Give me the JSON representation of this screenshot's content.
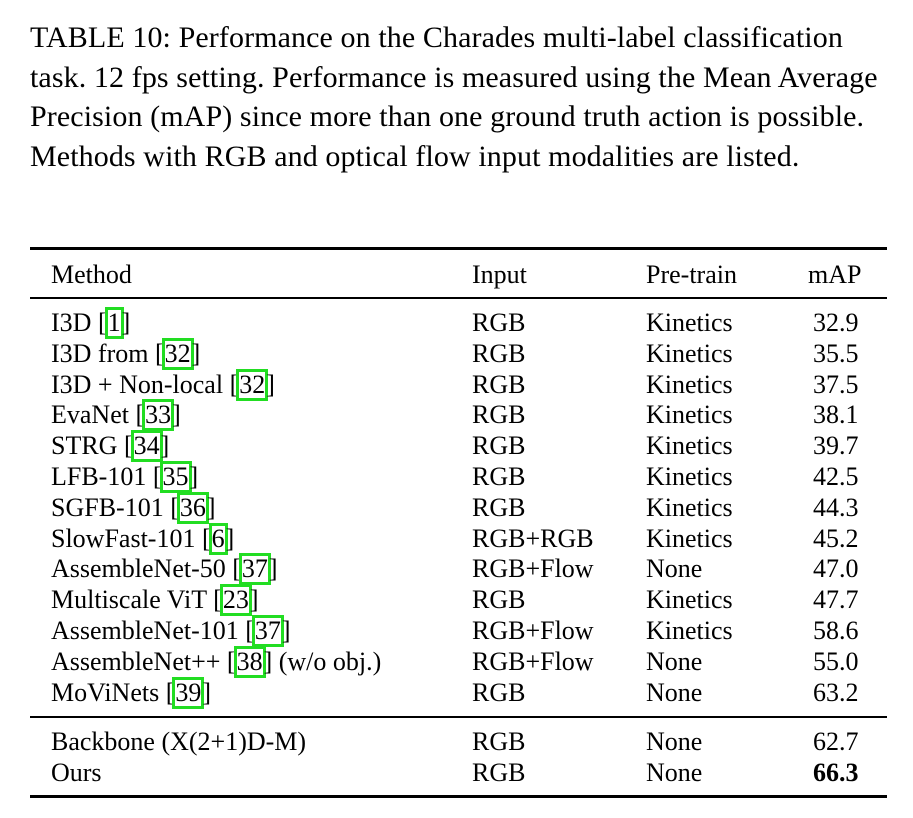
{
  "caption": "TABLE 10: Performance on the Charades multi-label classification task. 12 fps setting. Performance is measured using the Mean Average Precision (mAP) since more than one ground truth action is possible. Methods with RGB and optical flow input modalities are listed.",
  "headers": {
    "method": "Method",
    "input": "Input",
    "pretrain": "Pre-train",
    "map": "mAP"
  },
  "rows": [
    {
      "name": "I3D",
      "cite": "1",
      "suffix": "",
      "input": "RGB",
      "pretrain": "Kinetics",
      "map": "32.9"
    },
    {
      "name": "I3D from",
      "cite": "32",
      "suffix": "",
      "input": "RGB",
      "pretrain": "Kinetics",
      "map": "35.5"
    },
    {
      "name": "I3D + Non-local",
      "cite": "32",
      "suffix": "",
      "input": "RGB",
      "pretrain": "Kinetics",
      "map": "37.5"
    },
    {
      "name": "EvaNet",
      "cite": "33",
      "suffix": "",
      "input": "RGB",
      "pretrain": "Kinetics",
      "map": "38.1"
    },
    {
      "name": "STRG",
      "cite": "34",
      "suffix": "",
      "input": "RGB",
      "pretrain": "Kinetics",
      "map": "39.7"
    },
    {
      "name": "LFB-101",
      "cite": "35",
      "suffix": "",
      "input": "RGB",
      "pretrain": "Kinetics",
      "map": "42.5"
    },
    {
      "name": "SGFB-101",
      "cite": "36",
      "suffix": "",
      "input": "RGB",
      "pretrain": "Kinetics",
      "map": "44.3"
    },
    {
      "name": "SlowFast-101",
      "cite": "6",
      "suffix": "",
      "input": "RGB+RGB",
      "pretrain": "Kinetics",
      "map": "45.2"
    },
    {
      "name": "AssembleNet-50",
      "cite": "37",
      "suffix": "",
      "input": "RGB+Flow",
      "pretrain": "None",
      "map": "47.0"
    },
    {
      "name": "Multiscale ViT",
      "cite": "23",
      "suffix": "",
      "input": "RGB",
      "pretrain": "Kinetics",
      "map": "47.7"
    },
    {
      "name": "AssembleNet-101",
      "cite": "37",
      "suffix": "",
      "input": "RGB+Flow",
      "pretrain": "Kinetics",
      "map": "58.6"
    },
    {
      "name": "AssembleNet++",
      "cite": "38",
      "suffix": "(w/o obj.)",
      "input": "RGB+Flow",
      "pretrain": "None",
      "map": "55.0"
    },
    {
      "name": "MoViNets",
      "cite": "39",
      "suffix": "",
      "input": "RGB",
      "pretrain": "None",
      "map": "63.2"
    }
  ],
  "bottom_rows": [
    {
      "name": "Backbone (X(2+1)D-M)",
      "input": "RGB",
      "pretrain": "None",
      "map": "62.7"
    },
    {
      "name": "Ours",
      "input": "RGB",
      "pretrain": "None",
      "map": "66.3"
    }
  ],
  "brackets": {
    "open": "[",
    "close": "]"
  }
}
